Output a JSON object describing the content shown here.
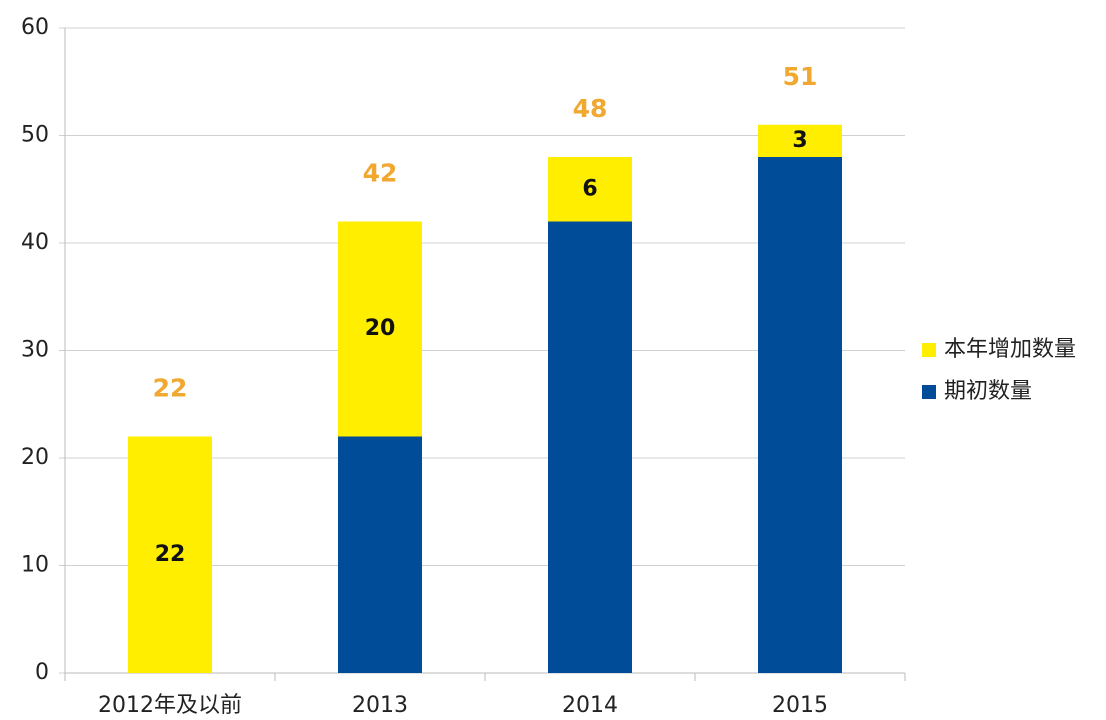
{
  "chart_data": {
    "type": "stacked_bar",
    "categories": [
      "2012年及以前",
      "2013",
      "2014",
      "2015"
    ],
    "series": [
      {
        "name": "期初数量",
        "color": "#004c99",
        "values": [
          null,
          22,
          42,
          48
        ]
      },
      {
        "name": "本年增加数量",
        "color": "#ffee00",
        "values": [
          22,
          20,
          6,
          3
        ],
        "show_labels": true
      }
    ],
    "totals": [
      22,
      42,
      48,
      51
    ],
    "totals_color": "#f0a830",
    "ylim": [
      0,
      60
    ],
    "yticks": [
      0,
      10,
      20,
      30,
      40,
      50,
      60
    ],
    "grid": true,
    "legend": "right"
  }
}
